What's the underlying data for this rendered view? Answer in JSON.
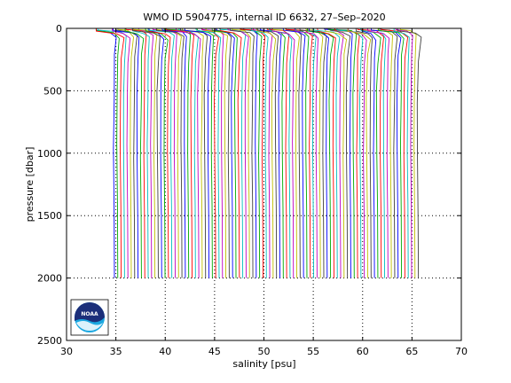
{
  "chart_data": {
    "type": "line",
    "title": "WMO ID 5904775, internal ID 6632, 27–Sep–2020",
    "xlabel": "salinity [psu]",
    "ylabel": "pressure [dbar]",
    "xlim": [
      30,
      70
    ],
    "ylim": [
      0,
      2500
    ],
    "y_reversed": true,
    "grid": "dotted",
    "x_ticks": [
      30,
      35,
      40,
      45,
      50,
      55,
      60,
      65,
      70
    ],
    "y_ticks": [
      0,
      500,
      1000,
      1500,
      2000,
      2500
    ],
    "x_tick_labels": [
      "30",
      "35",
      "40",
      "45",
      "50",
      "55",
      "60",
      "65",
      "70"
    ],
    "y_tick_labels": [
      "0",
      "500",
      "1000",
      "1500",
      "2000",
      "2500"
    ],
    "profiles": {
      "description": "Waterfall of salinity profiles, each successive profile offset in salinity",
      "count": 91,
      "first_offset_salinity": 34.8,
      "last_offset_salinity": 65.6,
      "max_pressure": 2000,
      "surface_salinity_min": 33.0,
      "colors": [
        "#0000ff",
        "#00aa00",
        "#ff0000",
        "#00bfbf",
        "#bf00bf",
        "#bfbf00",
        "#404040"
      ]
    },
    "logo": "noaa-logo"
  }
}
